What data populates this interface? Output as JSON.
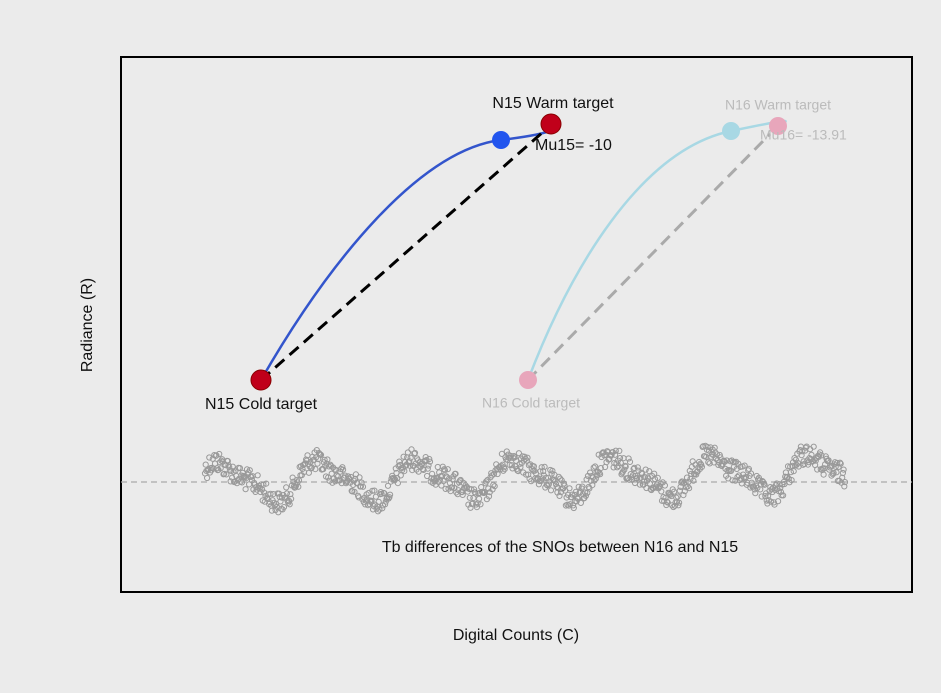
{
  "labels": {
    "n15_warm": "N15 Warm target",
    "mu15": "Mu15= -10",
    "n16_warm": "N16 Warm target",
    "mu16": "Mu16= -13.91",
    "n15_cold": "N15 Cold target",
    "n16_cold": "N16 Cold target",
    "tb_note": "Tb differences of the SNOs between N16 and N15"
  },
  "axes": {
    "y_label": "Radiance (R)",
    "x_label": "Digital Counts (C)"
  }
}
